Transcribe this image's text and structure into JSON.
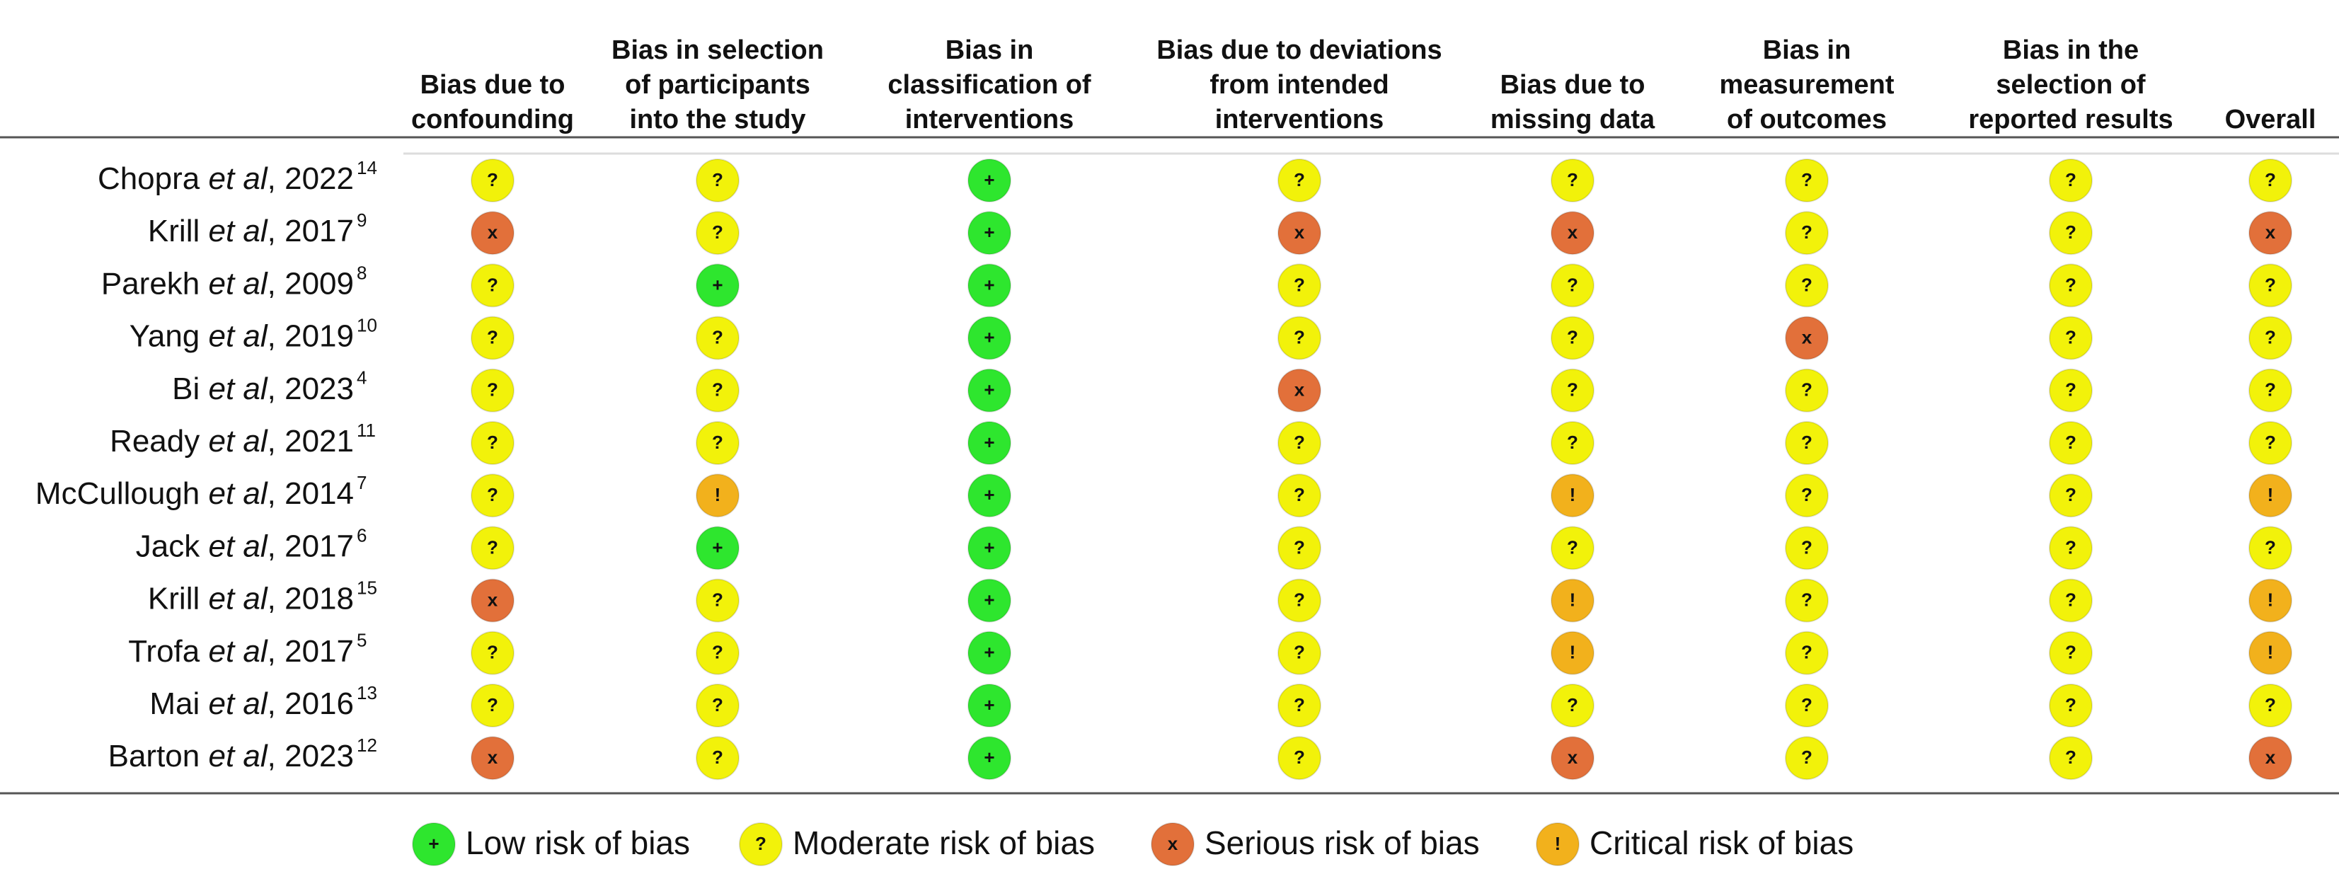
{
  "table": {
    "columns": [
      [
        "Bias due to",
        "confounding"
      ],
      [
        "Bias in selection",
        "of participants",
        "into the study"
      ],
      [
        "Bias in",
        "classification of",
        "interventions"
      ],
      [
        "Bias due to deviations",
        "from intended",
        "interventions"
      ],
      [
        "Bias due to",
        "missing data"
      ],
      [
        "Bias in",
        "measurement",
        "of outcomes"
      ],
      [
        "Bias in the",
        "selection of",
        "reported results"
      ],
      [
        "Overall"
      ]
    ],
    "rows": [
      {
        "author": "Chopra",
        "etal": "et al",
        "year": ", 2022",
        "ref": "14",
        "cells": [
          "?",
          "?",
          "+",
          "?",
          "?",
          "?",
          "?",
          "?"
        ]
      },
      {
        "author": "Krill",
        "etal": "et al",
        "year": ", 2017",
        "ref": "9",
        "cells": [
          "x",
          "?",
          "+",
          "x",
          "x",
          "?",
          "?",
          "x"
        ]
      },
      {
        "author": "Parekh",
        "etal": "et al",
        "year": ", 2009",
        "ref": "8",
        "cells": [
          "?",
          "+",
          "+",
          "?",
          "?",
          "?",
          "?",
          "?"
        ]
      },
      {
        "author": "Yang",
        "etal": "et al",
        "year": ", 2019",
        "ref": "10",
        "cells": [
          "?",
          "?",
          "+",
          "?",
          "?",
          "x",
          "?",
          "?"
        ]
      },
      {
        "author": "Bi",
        "etal": "et al",
        "year": ", 2023",
        "ref": "4",
        "cells": [
          "?",
          "?",
          "+",
          "x",
          "?",
          "?",
          "?",
          "?"
        ]
      },
      {
        "author": "Ready",
        "etal": "et al",
        "year": ", 2021",
        "ref": "11",
        "cells": [
          "?",
          "?",
          "+",
          "?",
          "?",
          "?",
          "?",
          "?"
        ]
      },
      {
        "author": "McCullough",
        "etal": "et al",
        "year": ", 2014",
        "ref": "7",
        "cells": [
          "?",
          "!",
          "+",
          "?",
          "!",
          "?",
          "?",
          "!"
        ]
      },
      {
        "author": "Jack",
        "etal": "et al",
        "year": ", 2017",
        "ref": "6",
        "cells": [
          "?",
          "+",
          "+",
          "?",
          "?",
          "?",
          "?",
          "?"
        ]
      },
      {
        "author": "Krill",
        "etal": "et al",
        "year": ", 2018",
        "ref": "15",
        "cells": [
          "x",
          "?",
          "+",
          "?",
          "!",
          "?",
          "?",
          "!"
        ]
      },
      {
        "author": "Trofa",
        "etal": "et al",
        "year": ", 2017",
        "ref": "5",
        "cells": [
          "?",
          "?",
          "+",
          "?",
          "!",
          "?",
          "?",
          "!"
        ]
      },
      {
        "author": "Mai",
        "etal": "et al",
        "year": ", 2016",
        "ref": "13",
        "cells": [
          "?",
          "?",
          "+",
          "?",
          "?",
          "?",
          "?",
          "?"
        ]
      },
      {
        "author": "Barton",
        "etal": "et al",
        "year": ", 2023",
        "ref": "12",
        "cells": [
          "x",
          "?",
          "+",
          "?",
          "x",
          "?",
          "?",
          "x"
        ]
      }
    ]
  },
  "legend": [
    {
      "symbol": "+",
      "label": "Low risk of bias",
      "color": "#2ee62e"
    },
    {
      "symbol": "?",
      "label": "Moderate risk of bias",
      "color": "#f2f20a"
    },
    {
      "symbol": "x",
      "label": "Serious risk of bias",
      "color": "#e2703a"
    },
    {
      "symbol": "!",
      "label": "Critical risk of bias",
      "color": "#f2b11c"
    }
  ]
}
